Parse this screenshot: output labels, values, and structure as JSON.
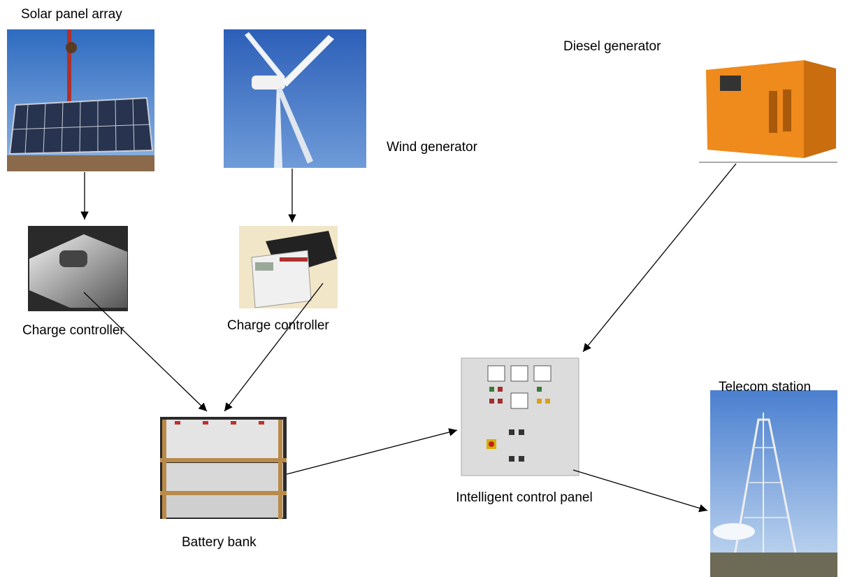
{
  "nodes": [
    {
      "label": "Solar panel array"
    },
    {
      "label": "Wind generator"
    },
    {
      "label": "Diesel generator"
    },
    {
      "label": "Charge controller"
    },
    {
      "label": "Charge controller"
    },
    {
      "label": "Battery bank"
    },
    {
      "label": "Intelligent control panel"
    },
    {
      "label": "Telecom station"
    }
  ]
}
